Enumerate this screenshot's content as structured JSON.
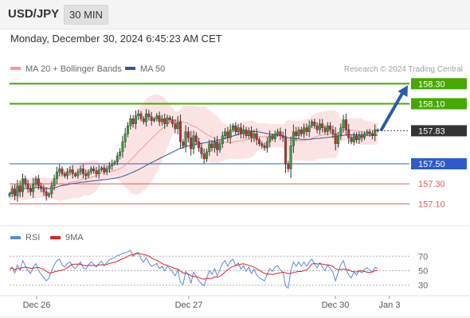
{
  "header": {
    "symbol": "USD/JPY",
    "interval": "30 MIN"
  },
  "timestamp": "Monday, December 30, 2024 6:45:23 AM CET",
  "chart_data": [
    {
      "type": "candlestick",
      "legend": [
        {
          "name": "MA 20 + Bollinger Bands",
          "color": "#f39a9a"
        },
        {
          "name": "MA 50",
          "color": "#2d5c9a"
        }
      ],
      "copyright": "Research © 2024 Trading Central",
      "x_ticks": [
        "Dec 26",
        "Dec 27",
        "Dec 30",
        "Jan 3"
      ],
      "ylim": [
        157.0,
        158.35
      ],
      "current_price": 157.83,
      "levels": [
        {
          "value": 158.3,
          "label": "158.30",
          "kind": "resistance",
          "color": "#46a800"
        },
        {
          "value": 158.1,
          "label": "158.10",
          "kind": "resistance",
          "color": "#46a800"
        },
        {
          "value": 157.5,
          "label": "157.50",
          "kind": "pivot",
          "color": "#2b5cc8"
        },
        {
          "value": 157.3,
          "label": "157.30",
          "kind": "support",
          "color": "#e05a5a"
        },
        {
          "value": 157.1,
          "label": "157.10",
          "kind": "support",
          "color": "#e05a5a"
        }
      ],
      "projection": {
        "from": 157.83,
        "to": 158.3
      },
      "close": [
        157.2,
        157.25,
        157.18,
        157.28,
        157.22,
        157.35,
        157.3,
        157.25,
        157.22,
        157.3,
        157.35,
        157.28,
        157.25,
        157.22,
        157.18,
        157.2,
        157.28,
        157.35,
        157.42,
        157.45,
        157.4,
        157.38,
        157.42,
        157.44,
        157.4,
        157.38,
        157.42,
        157.45,
        157.4,
        157.38,
        157.42,
        157.45,
        157.43,
        157.4,
        157.44,
        157.46,
        157.42,
        157.45,
        157.48,
        157.5,
        157.52,
        157.58,
        157.62,
        157.72,
        157.8,
        157.88,
        157.95,
        157.9,
        157.98,
        158.0,
        157.95,
        157.92,
        158.0,
        157.97,
        157.93,
        157.95,
        157.98,
        157.92,
        157.95,
        157.9,
        157.96,
        157.94,
        157.9,
        157.85,
        157.92,
        157.72,
        157.68,
        157.82,
        157.76,
        157.65,
        157.78,
        157.72,
        157.66,
        157.6,
        157.55,
        157.62,
        157.7,
        157.66,
        157.72,
        157.64,
        157.7,
        157.78,
        157.82,
        157.76,
        157.84,
        157.88,
        157.82,
        157.86,
        157.8,
        157.84,
        157.78,
        157.83,
        157.76,
        157.8,
        157.74,
        157.7,
        157.68,
        157.66,
        157.72,
        157.78,
        157.75,
        157.8,
        157.82,
        157.78,
        157.76,
        157.5,
        157.45,
        157.68,
        157.82,
        157.78,
        157.84,
        157.8,
        157.86,
        157.82,
        157.88,
        157.92,
        157.88,
        157.84,
        157.9,
        157.86,
        157.82,
        157.88,
        157.84,
        157.8,
        157.7,
        157.78,
        157.86,
        157.94,
        157.84,
        157.76,
        157.72,
        157.78,
        157.74,
        157.78,
        157.76,
        157.8,
        157.82,
        157.8,
        157.78,
        157.84,
        157.83
      ],
      "rsi": {
        "name": "RSI",
        "color": "#5b8ad8",
        "ma_name": "9MA",
        "ma_color": "#e02020",
        "levels": [
          70,
          50,
          30
        ],
        "ylim": [
          22,
          78
        ],
        "values": [
          52,
          55,
          47,
          58,
          51,
          64,
          57,
          50,
          46,
          55,
          60,
          50,
          45,
          41,
          36,
          40,
          50,
          58,
          64,
          66,
          58,
          55,
          60,
          62,
          56,
          53,
          58,
          62,
          54,
          52,
          58,
          62,
          59,
          55,
          60,
          63,
          57,
          61,
          65,
          67,
          68,
          71,
          72,
          74,
          75,
          76,
          78,
          70,
          74,
          75,
          66,
          62,
          68,
          61,
          56,
          58,
          60,
          53,
          56,
          50,
          56,
          53,
          48,
          43,
          51,
          34,
          31,
          49,
          44,
          33,
          48,
          42,
          36,
          32,
          29,
          40,
          50,
          45,
          53,
          43,
          52,
          60,
          64,
          56,
          63,
          66,
          57,
          61,
          52,
          57,
          49,
          55,
          46,
          52,
          44,
          40,
          38,
          36,
          45,
          53,
          49,
          55,
          57,
          51,
          48,
          29,
          26,
          50,
          62,
          56,
          62,
          56,
          62,
          56,
          62,
          66,
          59,
          54,
          61,
          55,
          50,
          58,
          53,
          48,
          36,
          48,
          58,
          64,
          52,
          44,
          40,
          48,
          44,
          50,
          47,
          52,
          54,
          51,
          48,
          55,
          53
        ]
      }
    }
  ]
}
